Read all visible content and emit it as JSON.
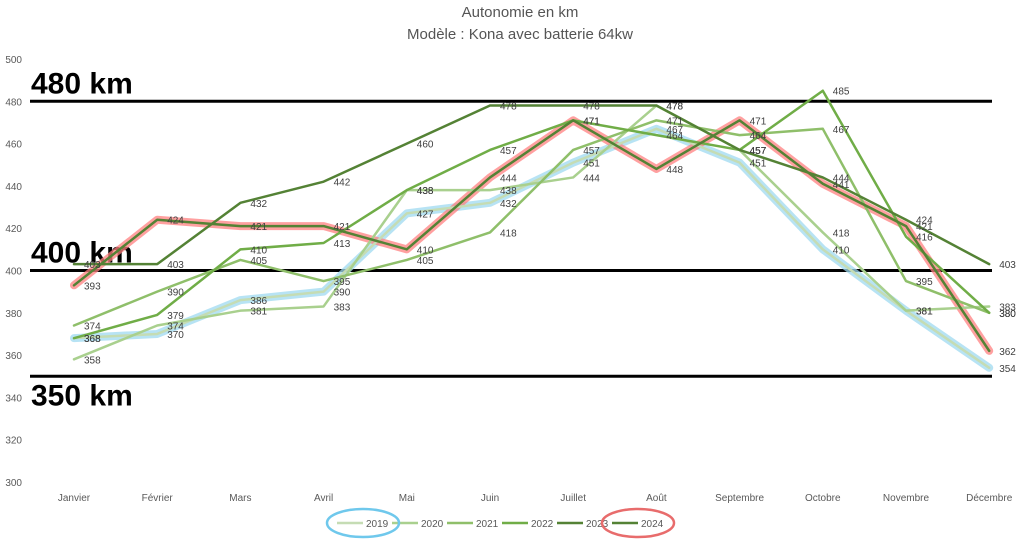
{
  "chart_data": {
    "type": "line",
    "title": "Autonomie en km",
    "subtitle": "Modèle : Kona avec batterie 64kw",
    "xlabel": "",
    "ylabel": "",
    "categories": [
      "Janvier",
      "Février",
      "Mars",
      "Avril",
      "Mai",
      "Juin",
      "Juillet",
      "Août",
      "Septembre",
      "Octobre",
      "Novembre",
      "Décembre"
    ],
    "ylim": [
      300,
      500
    ],
    "yticks": [
      300,
      320,
      340,
      360,
      380,
      400,
      420,
      440,
      460,
      480,
      500
    ],
    "grid": false,
    "legend_position": "bottom",
    "series": [
      {
        "name": "2019",
        "color": "#c5dcb4",
        "halo": "#9fd9f0",
        "values": [
          368,
          370,
          386,
          390,
          427,
          432,
          451,
          467,
          451,
          410,
          381,
          354
        ],
        "labels": [
          "368",
          "370",
          "386",
          "390",
          "427",
          "432",
          "451",
          "467",
          "451",
          "410",
          "381",
          "354"
        ]
      },
      {
        "name": "2020",
        "color": "#a9d08e",
        "values": [
          358,
          374,
          381,
          383,
          438,
          438,
          444,
          478,
          457,
          418,
          381,
          383
        ],
        "labels": [
          "358",
          "374",
          "381",
          "383",
          "438",
          "438",
          "444",
          "478",
          "457",
          "418",
          "381",
          "383"
        ]
      },
      {
        "name": "2021",
        "color": "#8fbf6a",
        "values": [
          374,
          390,
          405,
          395,
          405,
          418,
          457,
          471,
          464,
          467,
          395,
          380
        ],
        "labels": [
          "374",
          "390",
          "405",
          "395",
          "405",
          "418",
          "457",
          "471",
          "464",
          "467",
          "395",
          "380"
        ]
      },
      {
        "name": "2022",
        "color": "#70ad47",
        "values": [
          368,
          379,
          410,
          413,
          438,
          457,
          471,
          464,
          457,
          485,
          416,
          380
        ],
        "labels": [
          "368",
          "379",
          "410",
          "413",
          "438",
          "457",
          "471",
          "464",
          "457",
          "485",
          "416",
          "380"
        ]
      },
      {
        "name": "2023",
        "color": "#548235",
        "values": [
          403,
          403,
          432,
          442,
          460,
          478,
          478,
          478,
          457,
          444,
          424,
          403
        ],
        "labels": [
          "403",
          "403",
          "432",
          "442",
          "460",
          "478",
          "478",
          "478",
          "457",
          "444",
          "424",
          "403"
        ]
      },
      {
        "name": "2024",
        "color": "#548235",
        "halo": "#ff8080",
        "values": [
          393,
          424,
          421,
          421,
          410,
          444,
          471,
          448,
          471,
          441,
          421,
          362
        ],
        "labels": [
          "393",
          "424",
          "421",
          "421",
          "410",
          "444",
          "471",
          "448",
          "471",
          "441",
          "421",
          "362"
        ]
      }
    ],
    "reference_lines": [
      {
        "value": 480,
        "label": "480 km"
      },
      {
        "value": 400,
        "label": "400 km"
      },
      {
        "value": 350,
        "label": "350 km"
      }
    ],
    "legend_highlights": [
      {
        "series": "2019",
        "color": "#6fc8ec"
      },
      {
        "series": "2024",
        "color": "#e86c6c"
      }
    ]
  }
}
